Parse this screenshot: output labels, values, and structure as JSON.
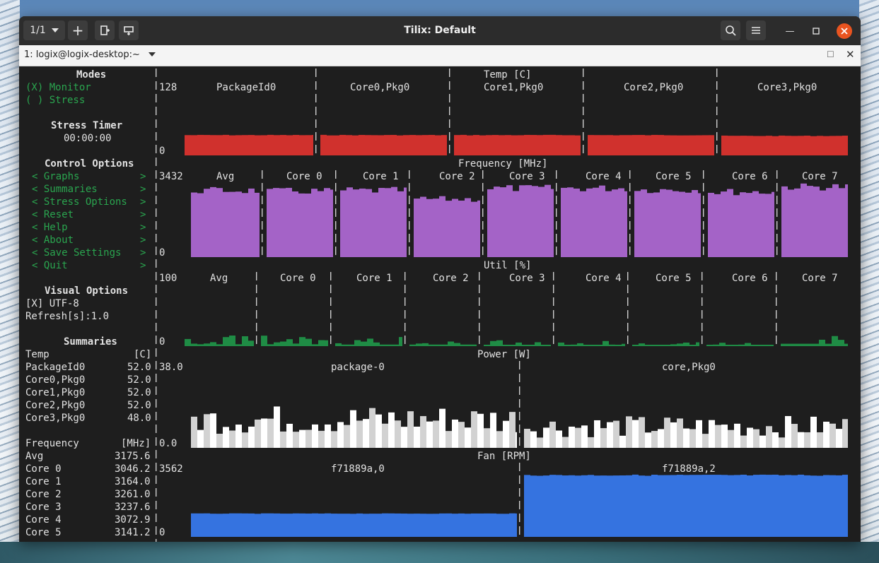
{
  "window": {
    "title": "Tilix: Default",
    "session_counter": "1/1",
    "tab_title": "1: logix@logix-desktop:~"
  },
  "sidebar": {
    "modes_heading": "Modes",
    "mode_monitor": "(X) Monitor",
    "mode_stress": "( ) Stress",
    "stress_timer_heading": "Stress Timer",
    "stress_timer_value": "00:00:00",
    "control_heading": "Control Options",
    "menu": [
      {
        "label": "< Graphs",
        "arrow": ">"
      },
      {
        "label": "< Summaries",
        "arrow": ">"
      },
      {
        "label": "< Stress Options",
        "arrow": ">"
      },
      {
        "label": "< Reset",
        "arrow": ">"
      },
      {
        "label": "< Help",
        "arrow": ">"
      },
      {
        "label": "< About",
        "arrow": ">"
      },
      {
        "label": "< Save Settings",
        "arrow": ">"
      },
      {
        "label": "< Quit",
        "arrow": ">"
      }
    ],
    "visual_heading": "Visual Options",
    "utf8_option": "[X] UTF-8",
    "refresh_option": "Refresh[s]:1.0",
    "summaries_heading": "Summaries",
    "temp_summary": {
      "label": "Temp",
      "unit": "[C]",
      "rows": [
        {
          "name": "PackageId0",
          "value": "52.0"
        },
        {
          "name": "Core0,Pkg0",
          "value": "52.0"
        },
        {
          "name": "Core1,Pkg0",
          "value": "52.0"
        },
        {
          "name": "Core2,Pkg0",
          "value": "52.0"
        },
        {
          "name": "Core3,Pkg0",
          "value": "48.0"
        }
      ]
    },
    "freq_summary": {
      "label": "Frequency",
      "unit": "[MHz]",
      "rows": [
        {
          "name": "Avg",
          "value": "3175.6"
        },
        {
          "name": "Core 0",
          "value": "3046.2"
        },
        {
          "name": "Core 1",
          "value": "3164.0"
        },
        {
          "name": "Core 2",
          "value": "3261.0"
        },
        {
          "name": "Core 3",
          "value": "3237.6"
        },
        {
          "name": "Core 4",
          "value": "3072.9"
        },
        {
          "name": "Core 5",
          "value": "3141.2"
        }
      ]
    }
  },
  "graphs": {
    "temp": {
      "title": "Temp [C]",
      "max_label": "128",
      "min_label": "0",
      "color": "#d0312d",
      "columns": [
        "PackageId0",
        "Core0,Pkg0",
        "Core1,Pkg0",
        "Core2,Pkg0",
        "Core3,Pkg0"
      ],
      "levels": [
        0.27,
        0.27,
        0.27,
        0.27,
        0.26
      ]
    },
    "frequency": {
      "title": "Frequency [MHz]",
      "max_label": "3432",
      "min_label": "0",
      "color": "#a463c7",
      "columns": [
        "Avg",
        "Core 0",
        "Core 1",
        "Core 2",
        "Core 3",
        "Core 4",
        "Core 5",
        "Core 6",
        "Core 7"
      ],
      "levels": [
        0.92,
        0.91,
        0.92,
        0.8,
        0.95,
        0.95,
        0.93,
        0.9,
        0.97
      ]
    },
    "util": {
      "title": "Util [%]",
      "max_label": "100",
      "min_label": "0",
      "color": "#1f8c45",
      "columns": [
        "Avg",
        "Core 0",
        "Core 1",
        "Core 2",
        "Core 3",
        "Core 4",
        "Core 5",
        "Core 6",
        "Core 7"
      ],
      "levels": [
        0.12,
        0.12,
        0.1,
        0.1,
        0.08,
        0.06,
        0.06,
        0.06,
        0.15
      ]
    },
    "power": {
      "title": "Power [W]",
      "max_label": "38.0",
      "min_label": "0.0",
      "color": "#d2d2d2",
      "columns": [
        "package-0",
        "core,Pkg0"
      ],
      "levels": [
        0.4,
        0.3
      ]
    },
    "fan": {
      "title": "Fan [RPM]",
      "max_label": "3562",
      "min_label": "0",
      "color": "#3573e0",
      "columns": [
        "f71889a,0",
        "f71889a,2"
      ],
      "levels": [
        0.37,
        0.98
      ]
    }
  }
}
